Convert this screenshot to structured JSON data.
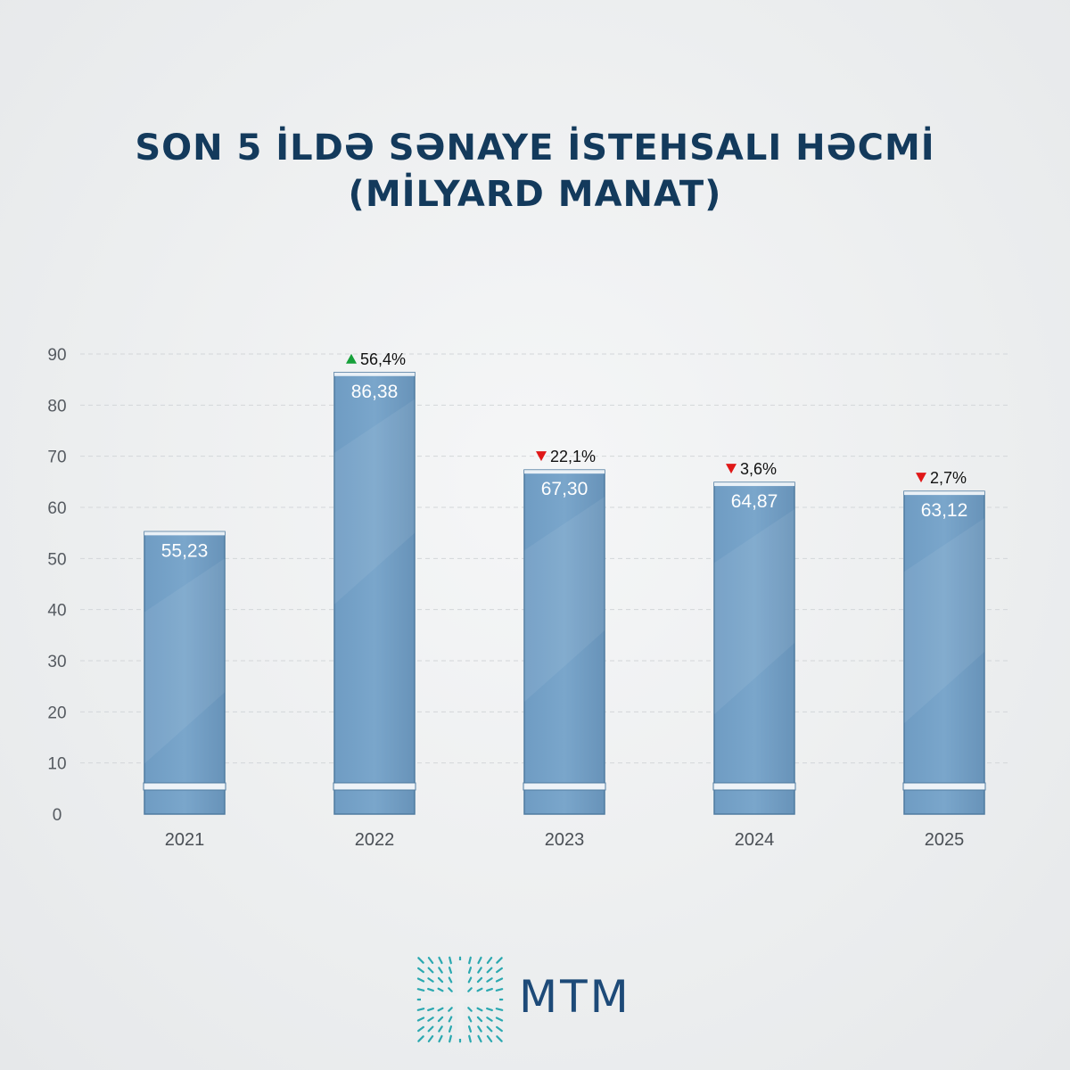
{
  "header": {
    "title_line1": "SON 5 İLDƏ SƏNAYE İSTEHSALI HƏCMİ",
    "title_line2": "(MİLYARD MANAT)"
  },
  "chart_data": {
    "type": "bar",
    "categories": [
      "2021",
      "2022",
      "2023",
      "2024",
      "2025"
    ],
    "values": [
      55.23,
      86.38,
      67.3,
      64.87,
      63.12
    ],
    "value_labels": [
      "55,23",
      "86,38",
      "67,30",
      "64,87",
      "63,12"
    ],
    "changes": [
      null,
      {
        "direction": "up",
        "label": "56,4%"
      },
      {
        "direction": "down",
        "label": "22,1%"
      },
      {
        "direction": "down",
        "label": "3,6%"
      },
      {
        "direction": "down",
        "label": "2,7%"
      }
    ],
    "y_ticks": [
      "0",
      "10",
      "20",
      "30",
      "40",
      "50",
      "60",
      "70",
      "80",
      "90"
    ],
    "ylim": [
      0,
      90
    ],
    "grid": true,
    "colors": {
      "bar": "#7aa6cb",
      "bar_edge": "#4f7ba0",
      "up": "#16a03a",
      "down": "#e01818"
    }
  },
  "brand": {
    "logo_text": "MTM",
    "logo_color": "#1d4a78",
    "mark_color": "#2aa8b0"
  }
}
